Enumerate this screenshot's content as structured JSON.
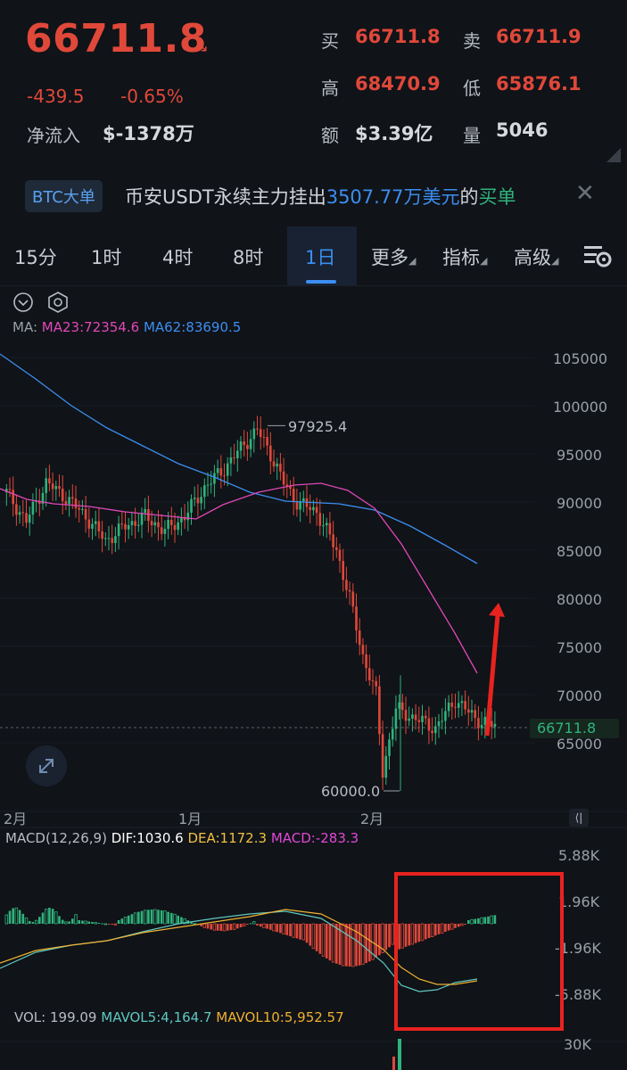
{
  "header": {
    "last_price": "66711.8",
    "change": "-439.5",
    "change_pct": "-0.65%",
    "net_inflow_label": "净流入",
    "net_inflow_value": "$-1378万",
    "stats": [
      {
        "label": "买",
        "value": "66711.8"
      },
      {
        "label": "卖",
        "value": "66711.9"
      },
      {
        "label": "高",
        "value": "68470.9"
      },
      {
        "label": "低",
        "value": "65876.1"
      },
      {
        "label": "额",
        "value": "$3.39亿"
      },
      {
        "label": "量",
        "value": "5046"
      }
    ]
  },
  "ticker": {
    "badge": "BTC大单",
    "text_prefix": "币安USDT永续主力挂出",
    "amount": "3507.77万美元",
    "text_mid": "的",
    "side": "买单"
  },
  "tabs": [
    "15分",
    "1时",
    "4时",
    "8时",
    "1日",
    "更多",
    "指标",
    "高级"
  ],
  "active_tab": "1日",
  "chart": {
    "ma_prefix": "MA:",
    "ma23": "MA23:72354.6",
    "ma62": "MA62:83690.5",
    "y_ticks": [
      "105000",
      "100000",
      "95000",
      "90000",
      "85000",
      "80000",
      "75000",
      "70000",
      "65000"
    ],
    "last_price_tag": "66711.8",
    "high_label": "97925.4",
    "low_label": "60000.0",
    "x_ticks": [
      "2月",
      "1月",
      "2月"
    ]
  },
  "macd": {
    "title": "MACD(12,26,9)",
    "dif": "DIF:1030.6",
    "dea": "DEA:1172.3",
    "macd": "MACD:-283.3",
    "y_ticks": [
      "5.88K",
      "1.96K",
      "-1.96K",
      "-5.88K"
    ]
  },
  "vol": {
    "vol": "VOL: 199.09",
    "mavol5": "MAVOL5:4,164.7",
    "mavol10": "MAVOL10:5,952.57",
    "y_tick": "30K"
  },
  "colors": {
    "bg": "#101318",
    "up": "#2fb37d",
    "down": "#e0483a",
    "accent": "#3b8ef0",
    "ma23": "#e048b8",
    "ma62": "#3b8ef0",
    "annotation": "#e8231f"
  },
  "icons": {
    "expand": "collapse-chevron-icon",
    "settings": "hexagon-settings-icon",
    "chart_settings": "chart-settings-icon",
    "fullscreen": "fullscreen-icon",
    "more": "more-dots-icon",
    "close": "close-icon"
  }
}
